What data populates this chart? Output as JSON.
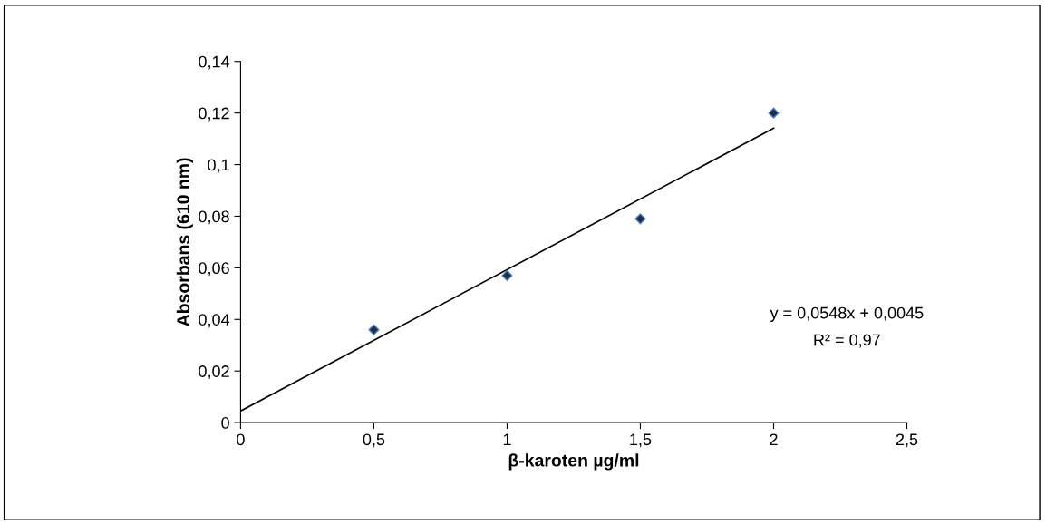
{
  "chart_data": {
    "type": "scatter",
    "xlabel": "β-karoten µg/ml",
    "ylabel": "Absorbans (610 nm)",
    "series": [
      {
        "color": "#1f2d4d",
        "x": [
          0.5,
          1,
          1.5,
          2
        ],
        "values": [
          0.036,
          0.057,
          0.079,
          0.12
        ],
        "marker": "diamond"
      },
      {
        "type": "line",
        "color": "#000000",
        "x": [
          0,
          2
        ],
        "values": [
          0.0045,
          0.1141
        ],
        "marker": "none",
        "line_style": "solid"
      }
    ],
    "xlim": [
      0,
      2.5
    ],
    "xticks": [
      0,
      {
        "value": 0.5,
        "label": "0,5"
      },
      1,
      {
        "value": 1.5,
        "label": "1,5"
      },
      2,
      {
        "value": 2.5,
        "label": "2,5"
      }
    ],
    "ylim": [
      0,
      0.14
    ],
    "yticks": [
      0,
      {
        "value": 0.02,
        "label": "0,02"
      },
      {
        "value": 0.04,
        "label": "0,04"
      },
      {
        "value": 0.06,
        "label": "0,06"
      },
      {
        "value": 0.08,
        "label": "0,08"
      },
      {
        "value": 0.1,
        "label": "0,1"
      },
      {
        "value": 0.12,
        "label": "0,12"
      },
      {
        "value": 0.14,
        "label": "0,14"
      }
    ],
    "annotations": [
      "y = 0,0548x + 0,0045",
      "R² = 0,97"
    ],
    "grid": false,
    "legend": false
  }
}
